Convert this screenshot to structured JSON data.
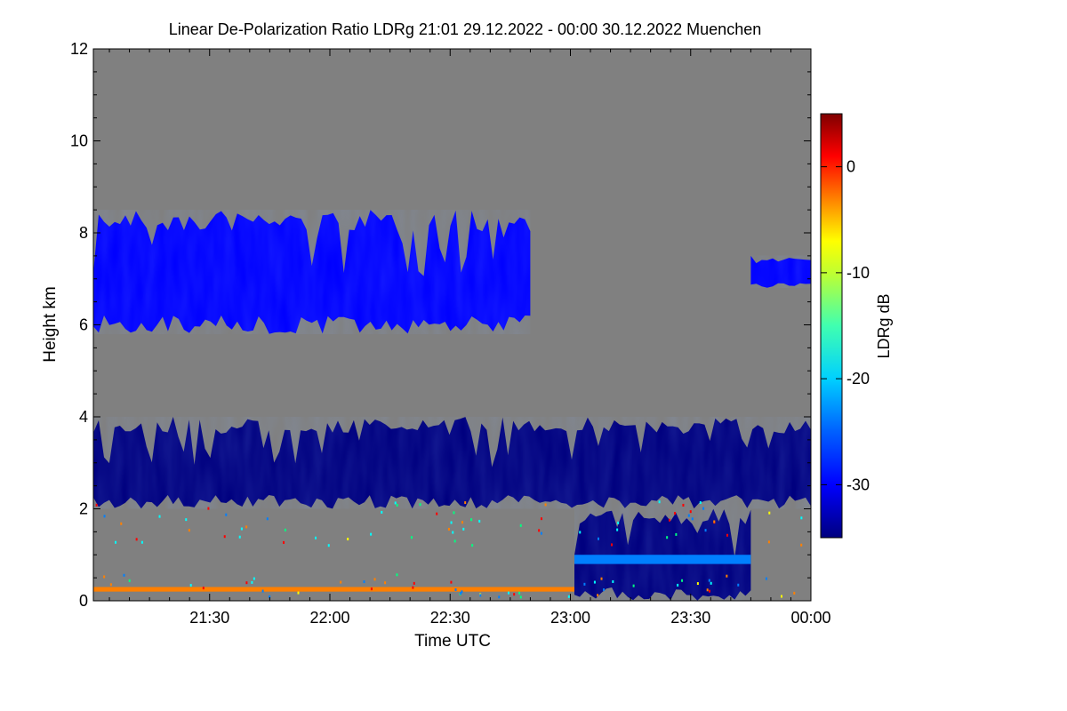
{
  "chart_data": {
    "type": "heatmap",
    "title": "Linear De-Polarization Ratio LDRg   21:01 29.12.2022 - 00:00 30.12.2022 Muenchen",
    "xlabel": "Time UTC",
    "ylabel": "Height km",
    "x_range": [
      "21:01",
      "00:00"
    ],
    "x_ticks": [
      "21:30",
      "22:00",
      "22:30",
      "23:00",
      "23:30",
      "00:00"
    ],
    "ylim": [
      0,
      12
    ],
    "y_ticks": [
      0,
      2,
      4,
      6,
      8,
      10,
      12
    ],
    "colorbar": {
      "label": "LDRg dB",
      "range": [
        -35,
        5
      ],
      "ticks": [
        0,
        -10,
        -20,
        -30
      ]
    },
    "colors": {
      "no_data": "#808080",
      "colormap": [
        "#00007f",
        "#0000ff",
        "#007fff",
        "#00ffff",
        "#7fff7f",
        "#ffff00",
        "#ff7f00",
        "#ff0000",
        "#7f0000"
      ]
    },
    "features": [
      {
        "name": "upper cloud layer",
        "t_start": "21:01",
        "t_end": "22:50",
        "h_min": 5.8,
        "h_max": 8.5,
        "ldr": -30
      },
      {
        "name": "upper cloud layer",
        "t_start": "23:45",
        "t_end": "00:00",
        "h_min": 6.8,
        "h_max": 7.5,
        "ldr": -30
      },
      {
        "name": "main cloud layer",
        "t_start": "21:01",
        "t_end": "00:00",
        "h_min": 2.0,
        "h_max": 4.0,
        "ldr": -33
      },
      {
        "name": "precipitation",
        "t_start": "23:01",
        "t_end": "23:45",
        "h_min": 0.0,
        "h_max": 2.0,
        "ldr": -33
      },
      {
        "name": "melting layer",
        "t_start": "23:01",
        "t_end": "23:45",
        "h_min": 0.8,
        "h_max": 1.0,
        "ldr": -25
      },
      {
        "name": "near-ground layer",
        "t_start": "21:01",
        "t_end": "23:01",
        "h_min": 0.2,
        "h_max": 0.3,
        "ldr": -5
      }
    ]
  }
}
